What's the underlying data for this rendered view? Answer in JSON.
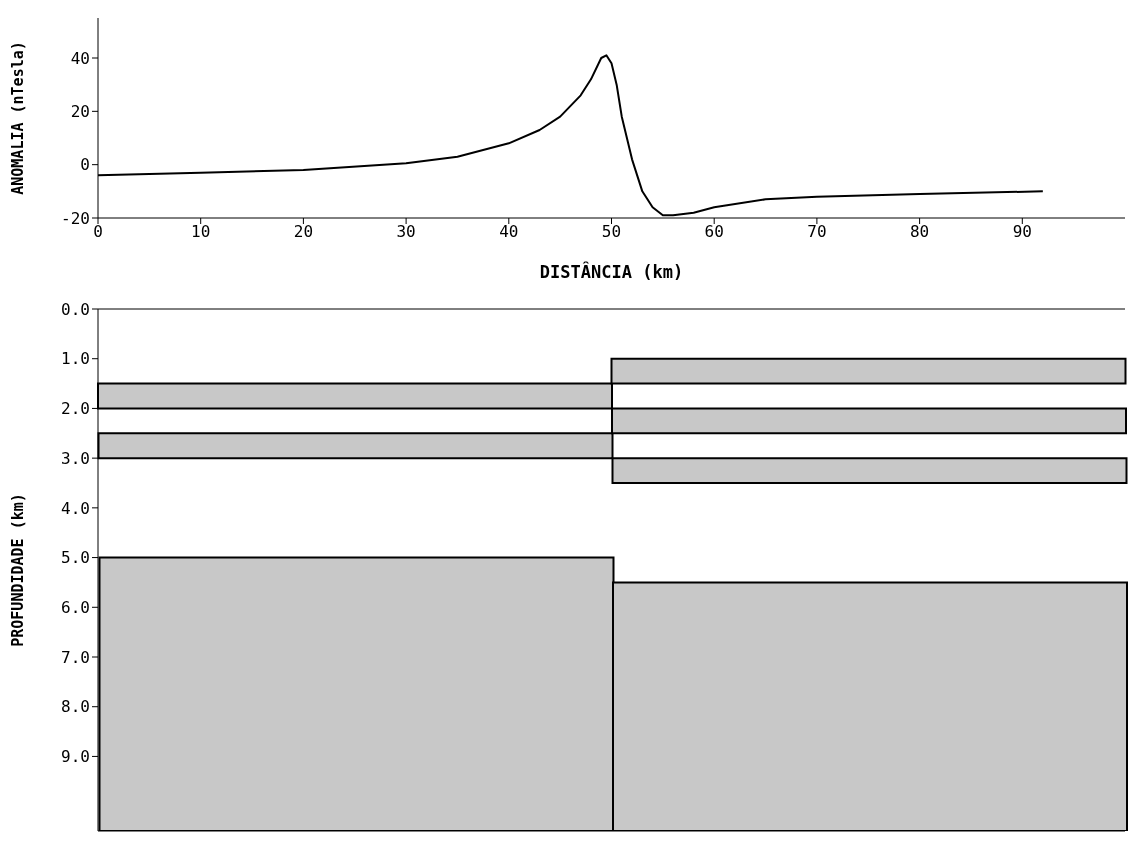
{
  "chart_data": [
    {
      "type": "line",
      "xlabel": "DISTÂNCIA (km)",
      "ylabel": "ANOMALIA (nTesla)",
      "xlim": [
        0,
        100
      ],
      "xticks": [
        0,
        10,
        20,
        30,
        40,
        50,
        60,
        70,
        80,
        90
      ],
      "ylim": [
        -20,
        55
      ],
      "yticks": [
        -20,
        0,
        20,
        40
      ],
      "grid": false,
      "legend": false,
      "marker": "none",
      "line_style": "solid",
      "series": [
        {
          "color": "#000000",
          "x": [
            0,
            10,
            20,
            30,
            35,
            40,
            43,
            45,
            47,
            48,
            49,
            49.5,
            50,
            50.5,
            51,
            52,
            53,
            54,
            55,
            56,
            58,
            60,
            65,
            70,
            80,
            92
          ],
          "values": [
            -4,
            -3,
            -2,
            0.5,
            3,
            8,
            13,
            18,
            26,
            32,
            40,
            41,
            38,
            30,
            18,
            2,
            -10,
            -16,
            -19,
            -19,
            -18,
            -16,
            -13,
            -12,
            -11,
            -10
          ]
        }
      ]
    },
    {
      "type": "bar",
      "ylabel": "PROFUNDIDADE (km)",
      "categories": [
        null,
        null
      ],
      "ylim": [
        10.5,
        0
      ],
      "yticks": [
        {
          "value": 0,
          "label": "0.0"
        },
        {
          "value": 1,
          "label": "1.0"
        },
        {
          "value": 2,
          "label": "2.0"
        },
        {
          "value": 3,
          "label": "3.0"
        },
        {
          "value": 4,
          "label": "4.0"
        },
        {
          "value": 5,
          "label": "5.0"
        },
        {
          "value": 6,
          "label": "6.0"
        },
        {
          "value": 7,
          "label": "7.0"
        },
        {
          "value": 8,
          "label": "8.0"
        },
        {
          "value": 9,
          "label": "9.0"
        }
      ],
      "tick_labels": "y",
      "grid": false,
      "legend": false,
      "series": [
        {
          "color": "#c8c8c8",
          "base": [
            1.5,
            1.0
          ],
          "values": [
            0.5,
            0.5
          ]
        },
        {
          "color": "#c8c8c8",
          "base": [
            2.5,
            2.0
          ],
          "values": [
            0.5,
            0.5
          ]
        },
        {
          "color": "#c8c8c8",
          "base": [
            null,
            3.0
          ],
          "values": [
            null,
            0.5
          ]
        },
        {
          "color": "#c8c8c8",
          "base": [
            5.0,
            5.5
          ],
          "values": [
            5.5,
            5.0
          ]
        }
      ]
    }
  ]
}
